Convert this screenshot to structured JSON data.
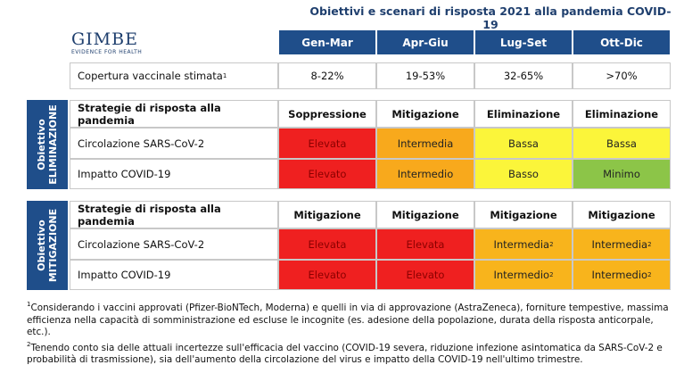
{
  "title": "Obiettivi e scenari di risposta 2021 alla pandemia COVID-19",
  "logo": {
    "name": "GIMBE",
    "tagline": "EVIDENCE FOR HEALTH"
  },
  "header": [
    "Gen-Mar",
    "Apr-Giu",
    "Lug-Set",
    "Ott-Dic"
  ],
  "coverage": {
    "label": "Copertura vaccinale stimata",
    "note": "1",
    "values": [
      "8-22%",
      "19-53%",
      "32-65%",
      ">70%"
    ]
  },
  "sections": [
    {
      "side": [
        "Obiettivo",
        "ELIMINAZIONE"
      ],
      "strategy": {
        "label": "Strategie di risposta alla pandemia",
        "values": [
          "Soppressione",
          "Mitigazione",
          "Eliminazione",
          "Eliminazione"
        ]
      },
      "rows": [
        {
          "label": "Circolazione SARS-CoV-2",
          "cells": [
            {
              "text": "Elevata",
              "color": "#ef2020"
            },
            {
              "text": "Intermedia",
              "color": "#f8a91c"
            },
            {
              "text": "Bassa",
              "color": "#fbf53a"
            },
            {
              "text": "Bassa",
              "color": "#fbf53a"
            }
          ]
        },
        {
          "label": "Impatto COVID-19",
          "cells": [
            {
              "text": "Elevato",
              "color": "#ef2020"
            },
            {
              "text": "Intermedio",
              "color": "#f8a91c"
            },
            {
              "text": "Basso",
              "color": "#fbf53a"
            },
            {
              "text": "Minimo",
              "color": "#8cc548"
            }
          ]
        }
      ]
    },
    {
      "side": [
        "Obiettivo",
        "MITIGAZIONE"
      ],
      "strategy": {
        "label": "Strategie di risposta alla pandemia",
        "values": [
          "Mitigazione",
          "Mitigazione",
          "Mitigazione",
          "Mitigazione"
        ]
      },
      "rows": [
        {
          "label": "Circolazione SARS-CoV-2",
          "cells": [
            {
              "text": "Elevata",
              "color": "#ef2020"
            },
            {
              "text": "Elevata",
              "color": "#ef2020"
            },
            {
              "text": "Intermedia",
              "note": "2",
              "color": "#f8b41c"
            },
            {
              "text": "Intermedia",
              "note": "2",
              "color": "#f8b41c"
            }
          ]
        },
        {
          "label": "Impatto COVID-19",
          "cells": [
            {
              "text": "Elevato",
              "color": "#ef2020"
            },
            {
              "text": "Elevato",
              "color": "#ef2020"
            },
            {
              "text": "Intermedio",
              "note": "2",
              "color": "#f8b41c"
            },
            {
              "text": "Intermedio",
              "note": "2",
              "color": "#f8b41c"
            }
          ]
        }
      ]
    }
  ],
  "footnotes": [
    {
      "mark": "1",
      "text": "Considerando i vaccini approvati (Pfizer-BioNTech, Moderna) e quelli in via di approvazione (AstraZeneca), forniture tempestive, massima efficienza nella capacità di somministrazione ed escluse le incognite (es. adesione della popolazione, durata della risposta anticorpale, etc.)."
    },
    {
      "mark": "2",
      "text": "Tenendo conto sia delle attuali incertezze sull'efficacia del vaccino (COVID-19 severa, riduzione infezione asintomatica da SARS-CoV-2 e probabilità di trasmissione), sia dell'aumento della circolazione del virus e impatto della COVID-19 nell'ultimo trimestre."
    }
  ]
}
